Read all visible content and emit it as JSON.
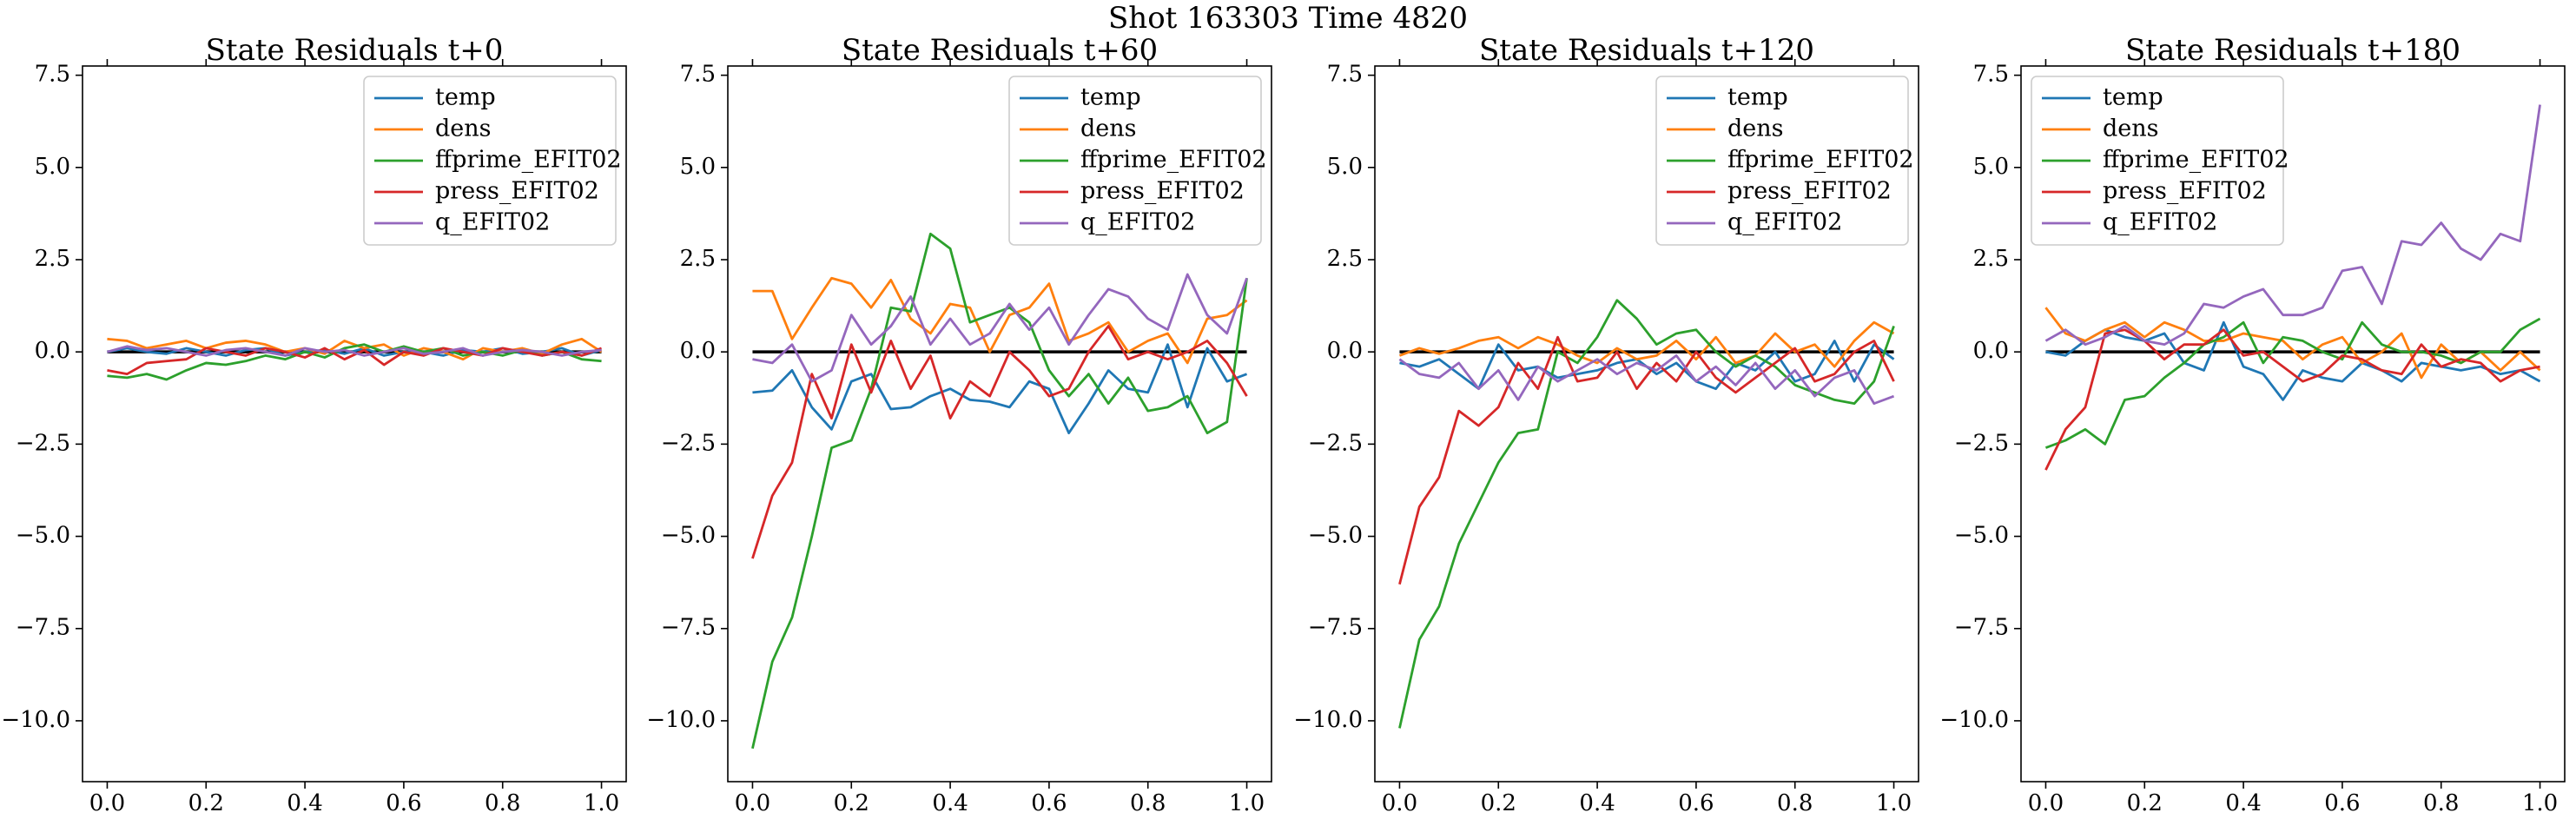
{
  "suptitle": "Shot 163303   Time 4820",
  "chart_data": [
    {
      "type": "line",
      "title": "State Residuals t+0",
      "legend": "upper right",
      "hline": 0,
      "hline_color": "#000000",
      "x": [
        0,
        0.04,
        0.08,
        0.12,
        0.16,
        0.2,
        0.24,
        0.28,
        0.32,
        0.36,
        0.4,
        0.44,
        0.48,
        0.52,
        0.56,
        0.6,
        0.64,
        0.68,
        0.72,
        0.76,
        0.8,
        0.84,
        0.88,
        0.92,
        0.96,
        1.0
      ],
      "xlim": [
        -0.05,
        1.05
      ],
      "ylim": [
        -11.65,
        7.75
      ],
      "xticks": [
        {
          "value": 0,
          "label": "0.0"
        },
        {
          "value": 0.2,
          "label": "0.2"
        },
        {
          "value": 0.4,
          "label": "0.4"
        },
        {
          "value": 0.6,
          "label": "0.6"
        },
        {
          "value": 0.8,
          "label": "0.8"
        },
        {
          "value": 1,
          "label": "1.0"
        }
      ],
      "yticks": [
        {
          "value": -10,
          "label": "−10.0"
        },
        {
          "value": -7.5,
          "label": "−7.5"
        },
        {
          "value": -5,
          "label": "−5.0"
        },
        {
          "value": -2.5,
          "label": "−2.5"
        },
        {
          "value": 0,
          "label": "0.0"
        },
        {
          "value": 2.5,
          "label": "2.5"
        },
        {
          "value": 5,
          "label": "5.0"
        },
        {
          "value": 7.5,
          "label": "7.5"
        }
      ],
      "series": [
        {
          "name": "temp",
          "color": "#1f77b4",
          "values": [
            0.0,
            0.1,
            0.0,
            -0.05,
            0.1,
            0.0,
            -0.1,
            0.05,
            0.1,
            -0.1,
            0.0,
            0.05,
            -0.05,
            0.1,
            -0.1,
            0.0,
            0.0,
            -0.1,
            0.05,
            0.0,
            0.1,
            -0.05,
            0.0,
            0.1,
            -0.1,
            0.05
          ]
        },
        {
          "name": "dens",
          "color": "#ff7f0e",
          "values": [
            0.35,
            0.3,
            0.1,
            0.2,
            0.3,
            0.1,
            0.25,
            0.3,
            0.2,
            0.0,
            0.1,
            -0.05,
            0.3,
            0.1,
            0.2,
            -0.1,
            0.1,
            0.0,
            -0.2,
            0.1,
            0.0,
            0.1,
            -0.05,
            0.2,
            0.35,
            0.0
          ]
        },
        {
          "name": "ffprime_EFIT02",
          "color": "#2ca02c",
          "values": [
            -0.65,
            -0.7,
            -0.6,
            -0.75,
            -0.5,
            -0.3,
            -0.35,
            -0.25,
            -0.1,
            -0.2,
            0.0,
            -0.15,
            0.1,
            0.2,
            0.0,
            0.15,
            0.0,
            0.1,
            -0.1,
            0.0,
            -0.1,
            0.05,
            -0.1,
            0.0,
            -0.2,
            -0.25
          ]
        },
        {
          "name": "press_EFIT02",
          "color": "#d62728",
          "values": [
            -0.5,
            -0.6,
            -0.3,
            -0.25,
            -0.2,
            0.1,
            0.0,
            -0.1,
            0.1,
            0.0,
            -0.15,
            0.1,
            -0.2,
            0.05,
            -0.35,
            0.0,
            -0.1,
            0.1,
            0.0,
            -0.1,
            0.1,
            0.0,
            -0.1,
            0.0,
            -0.1,
            0.1
          ]
        },
        {
          "name": "q_EFIT02",
          "color": "#9467bd",
          "values": [
            0.0,
            0.15,
            0.05,
            0.1,
            0.0,
            -0.1,
            0.05,
            0.1,
            0.0,
            -0.1,
            0.1,
            0.0,
            0.05,
            -0.1,
            0.0,
            0.1,
            -0.05,
            0.0,
            0.1,
            -0.1,
            0.0,
            0.05,
            0.0,
            -0.1,
            0.0,
            0.05
          ]
        }
      ]
    },
    {
      "type": "line",
      "title": "State Residuals t+60",
      "legend": "upper right",
      "hline": 0,
      "hline_color": "#000000",
      "x": [
        0,
        0.04,
        0.08,
        0.12,
        0.16,
        0.2,
        0.24,
        0.28,
        0.32,
        0.36,
        0.4,
        0.44,
        0.48,
        0.52,
        0.56,
        0.6,
        0.64,
        0.68,
        0.72,
        0.76,
        0.8,
        0.84,
        0.88,
        0.92,
        0.96,
        1.0
      ],
      "xlim": [
        -0.05,
        1.05
      ],
      "ylim": [
        -11.65,
        7.75
      ],
      "xticks": [
        {
          "value": 0,
          "label": "0.0"
        },
        {
          "value": 0.2,
          "label": "0.2"
        },
        {
          "value": 0.4,
          "label": "0.4"
        },
        {
          "value": 0.6,
          "label": "0.6"
        },
        {
          "value": 0.8,
          "label": "0.8"
        },
        {
          "value": 1,
          "label": "1.0"
        }
      ],
      "yticks": [
        {
          "value": -10,
          "label": "−10.0"
        },
        {
          "value": -7.5,
          "label": "−7.5"
        },
        {
          "value": -5,
          "label": "−5.0"
        },
        {
          "value": -2.5,
          "label": "−2.5"
        },
        {
          "value": 0,
          "label": "0.0"
        },
        {
          "value": 2.5,
          "label": "2.5"
        },
        {
          "value": 5,
          "label": "5.0"
        },
        {
          "value": 7.5,
          "label": "7.5"
        }
      ],
      "series": [
        {
          "name": "temp",
          "color": "#1f77b4",
          "values": [
            -1.1,
            -1.05,
            -0.5,
            -1.5,
            -2.1,
            -0.8,
            -0.6,
            -1.55,
            -1.5,
            -1.2,
            -1.0,
            -1.3,
            -1.35,
            -1.5,
            -0.8,
            -1.0,
            -2.2,
            -1.4,
            -0.5,
            -1.0,
            -1.1,
            0.2,
            -1.5,
            0.1,
            -0.8,
            -0.6
          ]
        },
        {
          "name": "dens",
          "color": "#ff7f0e",
          "values": [
            1.65,
            1.65,
            0.35,
            1.2,
            2.0,
            1.85,
            1.2,
            1.95,
            0.9,
            0.5,
            1.3,
            1.2,
            0.0,
            1.0,
            1.2,
            1.85,
            0.3,
            0.5,
            0.8,
            0.0,
            0.3,
            0.5,
            -0.3,
            0.9,
            1.0,
            1.4
          ]
        },
        {
          "name": "ffprime_EFIT02",
          "color": "#2ca02c",
          "values": [
            -10.75,
            -8.4,
            -7.2,
            -5.0,
            -2.6,
            -2.4,
            -1.0,
            1.2,
            1.1,
            3.2,
            2.8,
            0.8,
            1.0,
            1.2,
            0.8,
            -0.5,
            -1.2,
            -0.6,
            -1.4,
            -0.7,
            -1.6,
            -1.5,
            -1.2,
            -2.2,
            -1.9,
            2.0
          ]
        },
        {
          "name": "press_EFIT02",
          "color": "#d62728",
          "values": [
            -5.6,
            -3.9,
            -3.0,
            -0.6,
            -1.8,
            0.2,
            -1.1,
            0.3,
            -1.0,
            -0.1,
            -1.8,
            -0.8,
            -1.2,
            0.0,
            -0.5,
            -1.2,
            -1.0,
            0.0,
            0.7,
            -0.2,
            0.0,
            -0.2,
            0.0,
            0.3,
            -0.3,
            -1.2
          ]
        },
        {
          "name": "q_EFIT02",
          "color": "#9467bd",
          "values": [
            -0.2,
            -0.3,
            0.2,
            -0.8,
            -0.5,
            1.0,
            0.2,
            0.7,
            1.5,
            0.2,
            0.9,
            0.2,
            0.5,
            1.3,
            0.6,
            1.2,
            0.2,
            1.0,
            1.7,
            1.5,
            0.9,
            0.6,
            2.1,
            1.0,
            0.5,
            2.0
          ]
        }
      ]
    },
    {
      "type": "line",
      "title": "State Residuals t+120",
      "legend": "upper right",
      "hline": 0,
      "hline_color": "#000000",
      "x": [
        0,
        0.04,
        0.08,
        0.12,
        0.16,
        0.2,
        0.24,
        0.28,
        0.32,
        0.36,
        0.4,
        0.44,
        0.48,
        0.52,
        0.56,
        0.6,
        0.64,
        0.68,
        0.72,
        0.76,
        0.8,
        0.84,
        0.88,
        0.92,
        0.96,
        1.0
      ],
      "xlim": [
        -0.05,
        1.05
      ],
      "ylim": [
        -11.65,
        7.75
      ],
      "xticks": [
        {
          "value": 0,
          "label": "0.0"
        },
        {
          "value": 0.2,
          "label": "0.2"
        },
        {
          "value": 0.4,
          "label": "0.4"
        },
        {
          "value": 0.6,
          "label": "0.6"
        },
        {
          "value": 0.8,
          "label": "0.8"
        },
        {
          "value": 1,
          "label": "1.0"
        }
      ],
      "yticks": [
        {
          "value": -10,
          "label": "−10.0"
        },
        {
          "value": -7.5,
          "label": "−7.5"
        },
        {
          "value": -5,
          "label": "−5.0"
        },
        {
          "value": -2.5,
          "label": "−2.5"
        },
        {
          "value": 0,
          "label": "0.0"
        },
        {
          "value": 2.5,
          "label": "2.5"
        },
        {
          "value": 5,
          "label": "5.0"
        },
        {
          "value": 7.5,
          "label": "7.5"
        }
      ],
      "series": [
        {
          "name": "temp",
          "color": "#1f77b4",
          "values": [
            -0.3,
            -0.4,
            -0.2,
            -0.6,
            -1.0,
            0.2,
            -0.5,
            -0.4,
            -0.7,
            -0.6,
            -0.5,
            -0.3,
            -0.2,
            -0.6,
            -0.3,
            -0.8,
            -1.0,
            -0.3,
            -0.5,
            0.0,
            -0.8,
            -0.6,
            0.3,
            -0.8,
            0.2,
            -0.2
          ]
        },
        {
          "name": "dens",
          "color": "#ff7f0e",
          "values": [
            -0.1,
            0.1,
            -0.05,
            0.1,
            0.3,
            0.4,
            0.1,
            0.4,
            0.2,
            -0.1,
            -0.3,
            0.1,
            -0.2,
            -0.1,
            0.3,
            -0.2,
            0.4,
            -0.3,
            -0.1,
            0.5,
            0.0,
            0.2,
            -0.4,
            0.3,
            0.8,
            0.5
          ]
        },
        {
          "name": "ffprime_EFIT02",
          "color": "#2ca02c",
          "values": [
            -10.2,
            -7.8,
            -6.9,
            -5.2,
            -4.1,
            -3.0,
            -2.2,
            -2.1,
            0.0,
            -0.3,
            0.4,
            1.4,
            0.9,
            0.2,
            0.5,
            0.6,
            0.0,
            -0.4,
            -0.1,
            -0.4,
            -0.9,
            -1.1,
            -1.3,
            -1.4,
            -0.8,
            0.7
          ]
        },
        {
          "name": "press_EFIT02",
          "color": "#d62728",
          "values": [
            -6.3,
            -4.2,
            -3.4,
            -1.6,
            -2.0,
            -1.5,
            -0.3,
            -1.0,
            0.4,
            -0.8,
            -0.7,
            0.0,
            -1.0,
            -0.3,
            -0.8,
            0.0,
            -0.7,
            -1.1,
            -0.7,
            -0.3,
            0.1,
            -0.8,
            -0.6,
            0.0,
            0.3,
            -0.8
          ]
        },
        {
          "name": "q_EFIT02",
          "color": "#9467bd",
          "values": [
            -0.2,
            -0.6,
            -0.7,
            -0.3,
            -1.0,
            -0.5,
            -1.3,
            -0.4,
            -0.8,
            -0.5,
            -0.2,
            -0.6,
            -0.3,
            -0.5,
            -0.1,
            -0.8,
            -0.4,
            -0.9,
            -0.3,
            -1.0,
            -0.5,
            -1.2,
            -0.7,
            -0.5,
            -1.4,
            -1.2
          ]
        }
      ]
    },
    {
      "type": "line",
      "title": "State Residuals t+180",
      "legend": "upper left",
      "hline": 0,
      "hline_color": "#000000",
      "x": [
        0,
        0.04,
        0.08,
        0.12,
        0.16,
        0.2,
        0.24,
        0.28,
        0.32,
        0.36,
        0.4,
        0.44,
        0.48,
        0.52,
        0.56,
        0.6,
        0.64,
        0.68,
        0.72,
        0.76,
        0.8,
        0.84,
        0.88,
        0.92,
        0.96,
        1.0
      ],
      "xlim": [
        -0.05,
        1.05
      ],
      "ylim": [
        -11.65,
        7.75
      ],
      "xticks": [
        {
          "value": 0,
          "label": "0.0"
        },
        {
          "value": 0.2,
          "label": "0.2"
        },
        {
          "value": 0.4,
          "label": "0.4"
        },
        {
          "value": 0.6,
          "label": "0.6"
        },
        {
          "value": 0.8,
          "label": "0.8"
        },
        {
          "value": 1,
          "label": "1.0"
        }
      ],
      "yticks": [
        {
          "value": -10,
          "label": "−10.0"
        },
        {
          "value": -7.5,
          "label": "−7.5"
        },
        {
          "value": -5,
          "label": "−5.0"
        },
        {
          "value": -2.5,
          "label": "−2.5"
        },
        {
          "value": 0,
          "label": "0.0"
        },
        {
          "value": 2.5,
          "label": "2.5"
        },
        {
          "value": 5,
          "label": "5.0"
        },
        {
          "value": 7.5,
          "label": "7.5"
        }
      ],
      "series": [
        {
          "name": "temp",
          "color": "#1f77b4",
          "values": [
            0.0,
            -0.1,
            0.3,
            0.6,
            0.4,
            0.3,
            0.5,
            -0.3,
            -0.5,
            0.8,
            -0.4,
            -0.6,
            -1.3,
            -0.5,
            -0.7,
            -0.8,
            -0.3,
            -0.5,
            -0.8,
            -0.3,
            -0.4,
            -0.5,
            -0.4,
            -0.6,
            -0.5,
            -0.8
          ]
        },
        {
          "name": "dens",
          "color": "#ff7f0e",
          "values": [
            1.2,
            0.5,
            0.3,
            0.6,
            0.8,
            0.4,
            0.8,
            0.6,
            0.3,
            0.3,
            0.5,
            0.4,
            0.3,
            -0.2,
            0.2,
            0.4,
            -0.3,
            0.0,
            0.5,
            -0.7,
            0.2,
            -0.3,
            0.0,
            -0.5,
            0.0,
            -0.5
          ]
        },
        {
          "name": "ffprime_EFIT02",
          "color": "#2ca02c",
          "values": [
            -2.6,
            -2.4,
            -2.1,
            -2.5,
            -1.3,
            -1.2,
            -0.7,
            -0.3,
            0.2,
            0.4,
            0.8,
            -0.3,
            0.4,
            0.3,
            0.0,
            -0.2,
            0.8,
            0.2,
            0.0,
            0.0,
            -0.1,
            -0.3,
            0.0,
            0.0,
            0.6,
            0.9
          ]
        },
        {
          "name": "press_EFIT02",
          "color": "#d62728",
          "values": [
            -3.2,
            -2.1,
            -1.5,
            0.5,
            0.6,
            0.3,
            -0.2,
            0.2,
            0.2,
            0.6,
            -0.1,
            0.0,
            -0.4,
            -0.8,
            -0.6,
            -0.1,
            -0.2,
            -0.5,
            -0.6,
            0.2,
            -0.4,
            -0.2,
            -0.3,
            -0.8,
            -0.5,
            -0.4
          ]
        },
        {
          "name": "q_EFIT02",
          "color": "#9467bd",
          "values": [
            0.3,
            0.6,
            0.2,
            0.4,
            0.7,
            0.3,
            0.2,
            0.5,
            1.3,
            1.2,
            1.5,
            1.7,
            1.0,
            1.0,
            1.2,
            2.2,
            2.3,
            1.3,
            3.0,
            2.9,
            3.5,
            2.8,
            2.5,
            3.2,
            3.0,
            6.7
          ]
        }
      ]
    }
  ]
}
